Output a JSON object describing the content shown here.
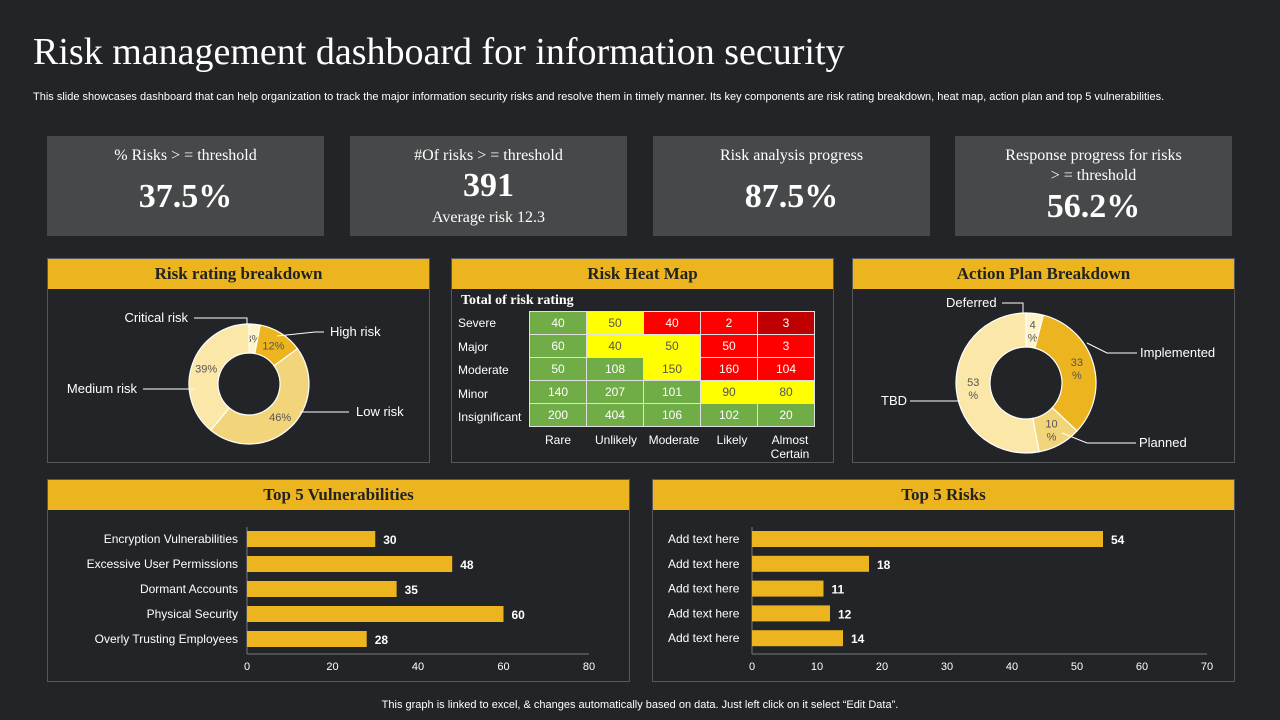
{
  "page": {
    "title": "Risk management dashboard for information security",
    "subtitle": "This slide showcases dashboard that can help organization to track the major information security risks and resolve them in timely manner. Its key components are risk rating breakdown, heat map, action plan and top 5 vulnerabilities.",
    "footer": "This graph is linked to excel, & changes automatically based on data. Just left click on it select “Edit Data”."
  },
  "kpis": [
    {
      "label": "% Risks > = threshold",
      "value": "37.5%",
      "sub": ""
    },
    {
      "label": "#Of risks > = threshold",
      "value": "391",
      "sub": "Average risk 12.3"
    },
    {
      "label": "Risk analysis progress",
      "value": "87.5%",
      "sub": ""
    },
    {
      "label": "Response progress for risks > = threshold",
      "value": "56.2%",
      "sub": ""
    }
  ],
  "panels": {
    "risk_rating": "Risk rating breakdown",
    "heat_map": "Risk Heat Map",
    "action_plan": "Action Plan Breakdown",
    "vulnerabilities": "Top 5 Vulnerabilities",
    "risks": "Top 5 Risks"
  },
  "colors": {
    "accent": "#ecb520",
    "heat_green": "#70ad47",
    "heat_yellow": "#ffff00",
    "heat_red": "#ff0000",
    "heat_darkred": "#c00000"
  },
  "chart_data": [
    {
      "type": "pie",
      "id": "risk_rating",
      "categories": [
        "Critical risk",
        "High risk",
        "Low risk",
        "Medium risk"
      ],
      "values": [
        3,
        12,
        46,
        39
      ],
      "labels": [
        "3%",
        "12%",
        "46%",
        "39%"
      ],
      "colors": [
        "#fff3c9",
        "#ecb520",
        "#f2d57a",
        "#fbe7a8"
      ]
    },
    {
      "type": "heatmap",
      "id": "heat_map",
      "title": "Total of risk rating",
      "rows": [
        "Severe",
        "Major",
        "Moderate",
        "Minor",
        "Insignificant"
      ],
      "columns": [
        "Rare",
        "Unlikely",
        "Moderate",
        "Likely",
        "Almost Certain"
      ],
      "values": [
        [
          40,
          50,
          40,
          2,
          3
        ],
        [
          60,
          40,
          50,
          50,
          3
        ],
        [
          50,
          108,
          150,
          160,
          104
        ],
        [
          140,
          207,
          101,
          90,
          80
        ],
        [
          200,
          404,
          106,
          102,
          20
        ]
      ],
      "levels": [
        [
          "green",
          "yellow",
          "red",
          "red",
          "darkred"
        ],
        [
          "green",
          "yellow",
          "yellow",
          "red",
          "red"
        ],
        [
          "green",
          "green",
          "yellow",
          "red",
          "red"
        ],
        [
          "green",
          "green",
          "green",
          "yellow",
          "yellow"
        ],
        [
          "green",
          "green",
          "green",
          "green",
          "green"
        ]
      ]
    },
    {
      "type": "pie",
      "id": "action_plan",
      "categories": [
        "Deferred",
        "Implemented",
        "Planned",
        "TBD"
      ],
      "values": [
        4,
        33,
        10,
        53
      ],
      "labels": [
        "4%",
        "33%",
        "10%",
        "53%"
      ],
      "colors": [
        "#fff3c9",
        "#ecb520",
        "#f2d57a",
        "#fbe7a8"
      ]
    },
    {
      "type": "bar",
      "id": "vulnerabilities",
      "categories": [
        "Encryption Vulnerabilities",
        "Excessive User Permissions",
        "Dormant Accounts",
        "Physical Security",
        "Overly Trusting Employees"
      ],
      "values": [
        30,
        48,
        35,
        60,
        28
      ],
      "xlim": [
        0,
        80
      ],
      "ticks": [
        0,
        20,
        40,
        60,
        80
      ]
    },
    {
      "type": "bar",
      "id": "risks",
      "categories": [
        "Add text here",
        "Add text here",
        "Add text here",
        "Add text here",
        "Add text here"
      ],
      "values": [
        54,
        18,
        11,
        12,
        14
      ],
      "xlim": [
        0,
        70
      ],
      "ticks": [
        0,
        10,
        20,
        30,
        40,
        50,
        60,
        70
      ]
    }
  ]
}
